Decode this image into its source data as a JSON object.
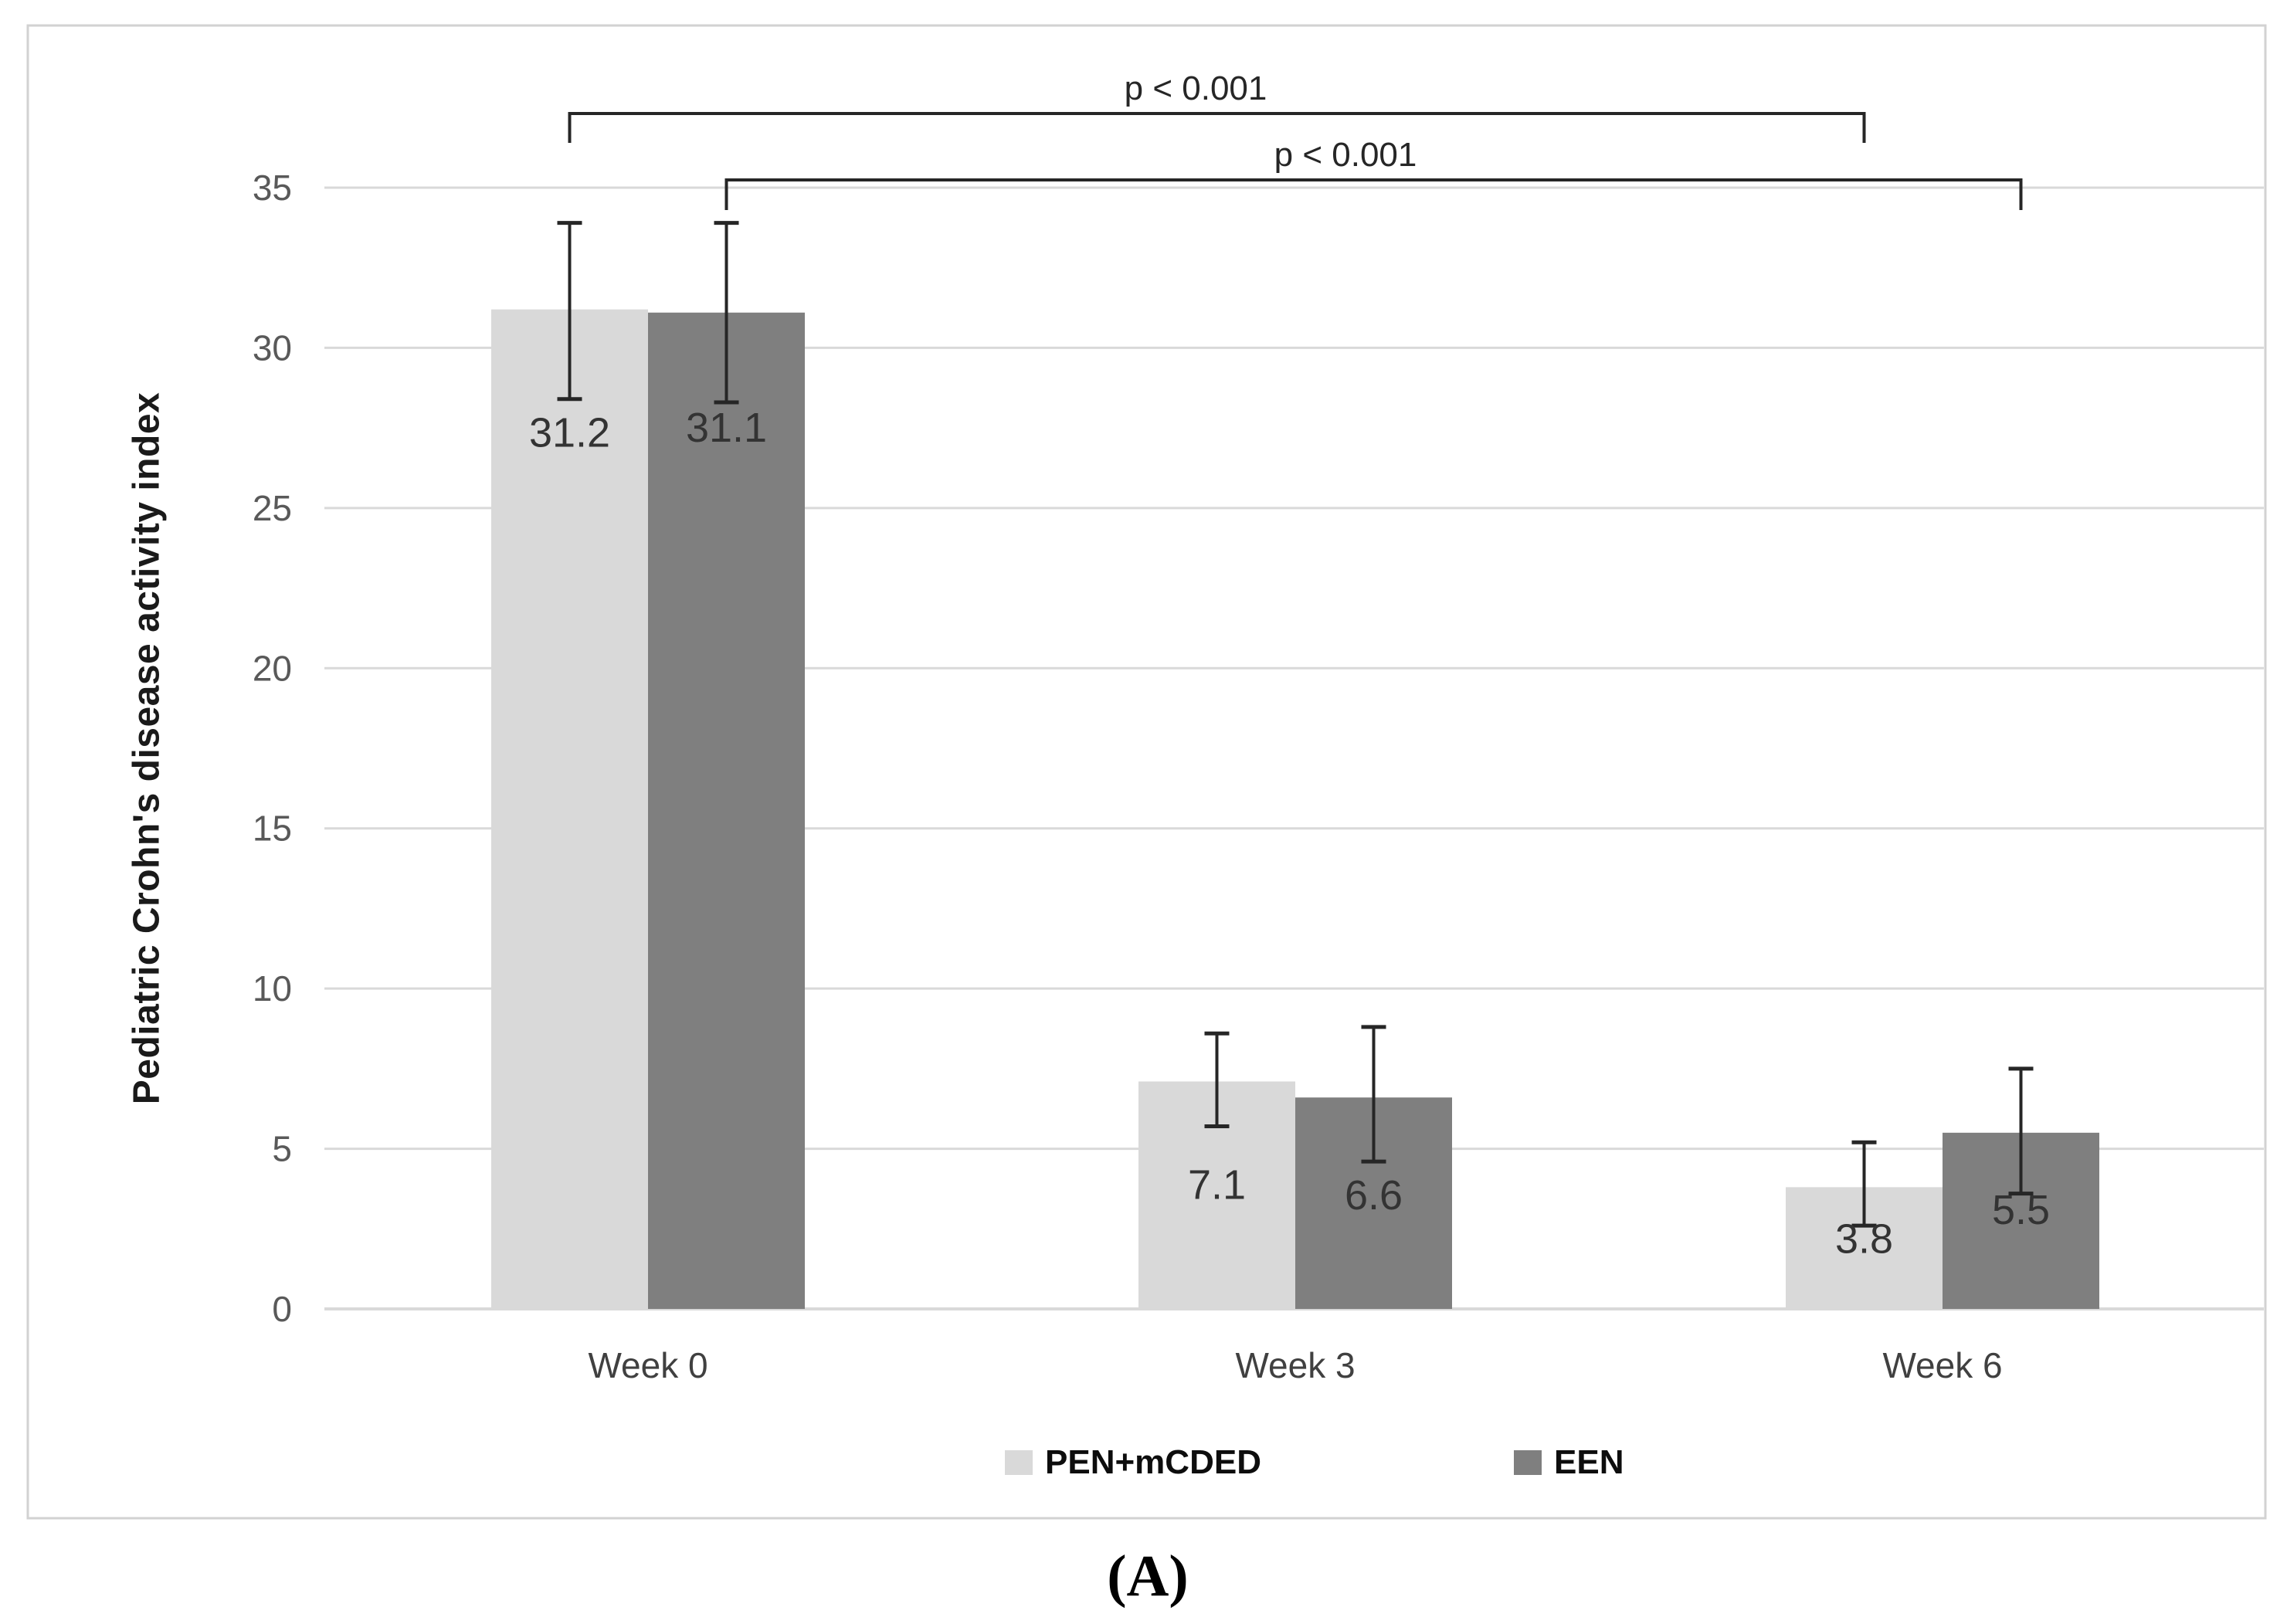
{
  "figure": {
    "panel_label": "(A)"
  },
  "chart_data": {
    "type": "bar",
    "title": "",
    "xlabel": "",
    "ylabel": "Pediatric Crohn's disease activity index",
    "categories": [
      "Week 0",
      "Week 3",
      "Week 6"
    ],
    "series": [
      {
        "name": "PEN+mCDED",
        "color": "#d9d9d9",
        "values": [
          31.2,
          7.1,
          3.8
        ],
        "error_low": [
          28.4,
          5.7,
          2.6
        ],
        "error_high": [
          33.9,
          8.6,
          5.2
        ]
      },
      {
        "name": "EEN",
        "color": "#7f7f7f",
        "values": [
          31.1,
          6.6,
          5.5
        ],
        "error_low": [
          28.3,
          4.6,
          3.6
        ],
        "error_high": [
          33.9,
          8.8,
          7.5
        ]
      }
    ],
    "y_ticks": [
      0,
      5,
      10,
      15,
      20,
      25,
      30,
      35
    ],
    "ylim": [
      0,
      35
    ],
    "grid": true,
    "legend_position": "bottom-center",
    "annotations": [
      {
        "label": "p < 0.001",
        "series": "PEN+mCDED",
        "from": "Week 0",
        "to": "Week 6"
      },
      {
        "label": "p < 0.001",
        "series": "EEN",
        "from": "Week 0",
        "to": "Week 6"
      }
    ],
    "colors": {
      "gridline": "#d9d9d9",
      "frame_border": "#d2d2d2",
      "error_bar": "#262626",
      "bracket": "#262626",
      "tick_label": "#595959",
      "category_label": "#404040",
      "value_label": "#333333"
    }
  }
}
